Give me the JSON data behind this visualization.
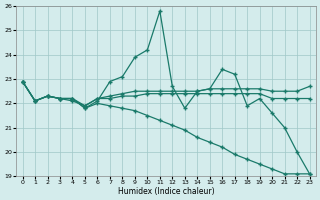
{
  "xlabel": "Humidex (Indice chaleur)",
  "background_color": "#d4ecec",
  "grid_color": "#a0c8c8",
  "line_color": "#1a7a6a",
  "x_values": [
    0,
    1,
    2,
    3,
    4,
    5,
    6,
    7,
    8,
    9,
    10,
    11,
    12,
    13,
    14,
    15,
    16,
    17,
    18,
    19,
    20,
    21,
    22,
    23
  ],
  "ylim": [
    19,
    26
  ],
  "xlim": [
    -0.5,
    23.5
  ],
  "yticks": [
    19,
    20,
    21,
    22,
    23,
    24,
    25,
    26
  ],
  "xticks": [
    0,
    1,
    2,
    3,
    4,
    5,
    6,
    7,
    8,
    9,
    10,
    11,
    12,
    13,
    14,
    15,
    16,
    17,
    18,
    19,
    20,
    21,
    22,
    23
  ],
  "series": [
    [
      22.9,
      22.1,
      22.3,
      22.2,
      22.2,
      21.8,
      22.1,
      22.9,
      23.1,
      23.9,
      24.2,
      25.8,
      22.7,
      21.8,
      22.5,
      22.6,
      23.4,
      23.2,
      21.9,
      22.2,
      21.6,
      21.0,
      20.0,
      19.1
    ],
    [
      22.9,
      22.1,
      22.3,
      22.2,
      22.2,
      21.9,
      22.2,
      22.3,
      22.4,
      22.5,
      22.5,
      22.5,
      22.5,
      22.5,
      22.5,
      22.6,
      22.6,
      22.6,
      22.6,
      22.6,
      22.5,
      22.5,
      22.5,
      22.7
    ],
    [
      22.9,
      22.1,
      22.3,
      22.2,
      22.1,
      21.9,
      22.2,
      22.2,
      22.3,
      22.3,
      22.4,
      22.4,
      22.4,
      22.4,
      22.4,
      22.4,
      22.4,
      22.4,
      22.4,
      22.4,
      22.2,
      22.2,
      22.2,
      22.2
    ],
    [
      22.9,
      22.1,
      22.3,
      22.2,
      22.2,
      21.8,
      22.0,
      21.9,
      21.8,
      21.7,
      21.5,
      21.3,
      21.1,
      20.9,
      20.6,
      20.4,
      20.2,
      19.9,
      19.7,
      19.5,
      19.3,
      19.1,
      19.1,
      19.1
    ]
  ]
}
